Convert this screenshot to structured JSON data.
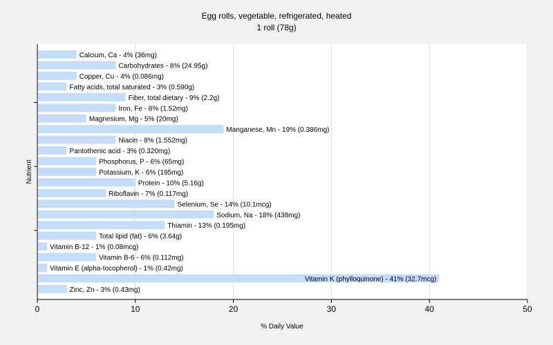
{
  "chart_data": {
    "type": "bar",
    "orientation": "horizontal",
    "title": "Egg rolls, vegetable, refrigerated, heated",
    "subtitle": "1 roll (78g)",
    "xlabel": "% Daily Value",
    "ylabel": "Nutrient",
    "xlim": [
      0,
      50
    ],
    "x_ticks": [
      0,
      10,
      20,
      30,
      40,
      50
    ],
    "grid": "vertical",
    "bar_color": "#c6ddf7",
    "background": "#f2f2f2",
    "plot_background": "#ffffff",
    "categories": [
      "Calcium, Ca",
      "Carbohydrates",
      "Copper, Cu",
      "Fatty acids, total saturated",
      "Fiber, total dietary",
      "Iron, Fe",
      "Magnesium, Mg",
      "Manganese, Mn",
      "Niacin",
      "Pantothenic acid",
      "Phosphorus, P",
      "Potassium, K",
      "Protein",
      "Riboflavin",
      "Selenium, Se",
      "Sodium, Na",
      "Thiamin",
      "Total lipid (fat)",
      "Vitamin B-12",
      "Vitamin B-6",
      "Vitamin E (alpha-tocopherol)",
      "Vitamin K (phylloquinone)",
      "Zinc, Zn"
    ],
    "values": [
      4,
      8,
      4,
      3,
      9,
      8,
      5,
      19,
      8,
      3,
      6,
      6,
      10,
      7,
      14,
      18,
      13,
      6,
      1,
      6,
      1,
      41,
      3
    ],
    "labels": [
      "Calcium, Ca - 4% (36mg)",
      "Carbohydrates - 8% (24.95g)",
      "Copper, Cu - 4% (0.086mg)",
      "Fatty acids, total saturated - 3% (0.590g)",
      "Fiber, total dietary - 9% (2.2g)",
      "Iron, Fe - 8% (1.52mg)",
      "Magnesium, Mg - 5% (20mg)",
      "Manganese, Mn - 19% (0.386mg)",
      "Niacin - 8% (1.552mg)",
      "Pantothenic acid - 3% (0.320mg)",
      "Phosphorus, P - 6% (65mg)",
      "Potassium, K - 6% (195mg)",
      "Protein - 10% (5.16g)",
      "Riboflavin - 7% (0.117mg)",
      "Selenium, Se - 14% (10.1mcg)",
      "Sodium, Na - 18% (438mg)",
      "Thiamin - 13% (0.195mg)",
      "Total lipid (fat) - 6% (3.64g)",
      "Vitamin B-12 - 1% (0.08mcg)",
      "Vitamin B-6 - 6% (0.112mg)",
      "Vitamin E (alpha-tocopherol) - 1% (0.42mg)",
      "Vitamin K (phylloquinone) - 41% (32.7mcg)",
      "Zinc, Zn - 3% (0.43mg)"
    ]
  }
}
